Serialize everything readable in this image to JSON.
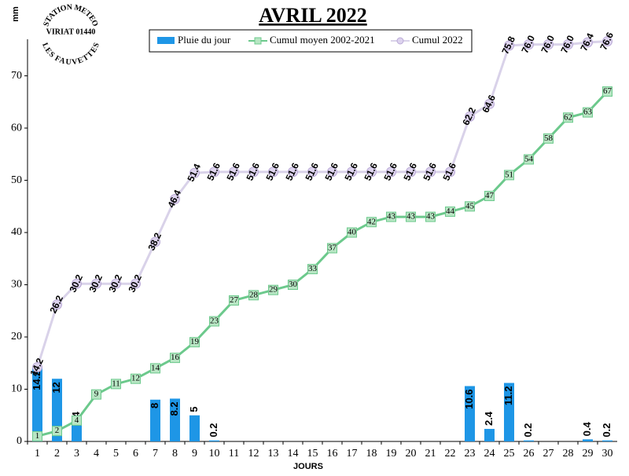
{
  "chart_data": {
    "type": "combo",
    "title": "AVRIL 2022",
    "logo": {
      "top": "STATION METEO",
      "middle": "VIRIAT 01440",
      "bottom": "LES FAUVETTES"
    },
    "y_label": "mm",
    "x_label": "JOURS",
    "categories": [
      "1",
      "2",
      "3",
      "4",
      "5",
      "6",
      "7",
      "8",
      "9",
      "10",
      "11",
      "12",
      "13",
      "14",
      "15",
      "16",
      "17",
      "18",
      "19",
      "20",
      "21",
      "22",
      "23",
      "24",
      "25",
      "26",
      "27",
      "28",
      "29",
      "30"
    ],
    "ylim": [
      0,
      77
    ],
    "yticks": [
      0,
      10,
      20,
      30,
      40,
      50,
      60,
      70
    ],
    "series": [
      {
        "name": "Pluie du jour",
        "type": "bar",
        "color": "#1e96e6",
        "values": [
          14.2,
          12,
          4,
          null,
          null,
          null,
          8,
          8.2,
          5,
          0.2,
          null,
          null,
          null,
          null,
          null,
          null,
          null,
          null,
          null,
          null,
          null,
          null,
          10.6,
          2.4,
          11.2,
          0.2,
          null,
          null,
          0.4,
          0.2
        ]
      },
      {
        "name": "Cumul moyen 2002-2021",
        "type": "line",
        "color": "#6cc98c",
        "marker": "square",
        "marker_color": "#b8e6c4",
        "values": [
          1,
          2,
          4,
          9,
          11,
          12,
          14,
          16,
          19,
          23,
          27,
          28,
          29,
          30,
          33,
          37,
          40,
          42,
          43,
          43,
          43,
          44,
          45,
          47,
          51,
          54,
          58,
          62,
          63,
          67
        ]
      },
      {
        "name": "Cumul 2022",
        "type": "line",
        "color": "#d9d2e9",
        "marker": "circle",
        "marker_color": "#ddd3ee",
        "values": [
          14.2,
          26.2,
          30.2,
          30.2,
          30.2,
          30.2,
          38.2,
          46.4,
          51.4,
          51.6,
          51.6,
          51.6,
          51.6,
          51.6,
          51.6,
          51.6,
          51.6,
          51.6,
          51.6,
          51.6,
          51.6,
          51.6,
          62.2,
          64.6,
          75.8,
          76.0,
          76.0,
          76.0,
          76.4,
          76.6
        ],
        "value_labels": [
          "14.2",
          "26.2",
          "30.2",
          "30.2",
          "30.2",
          "30.2",
          "38.2",
          "46.4",
          "51.4",
          "51.6",
          "51.6",
          "51.6",
          "51.6",
          "51.6",
          "51.6",
          "51.6",
          "51.6",
          "51.6",
          "51.6",
          "51.6",
          "51.6",
          "51.6",
          "62.2",
          "64.6",
          "75.8",
          "76.0",
          "76.0",
          "76.0",
          "76.4",
          "76.6"
        ]
      }
    ]
  }
}
